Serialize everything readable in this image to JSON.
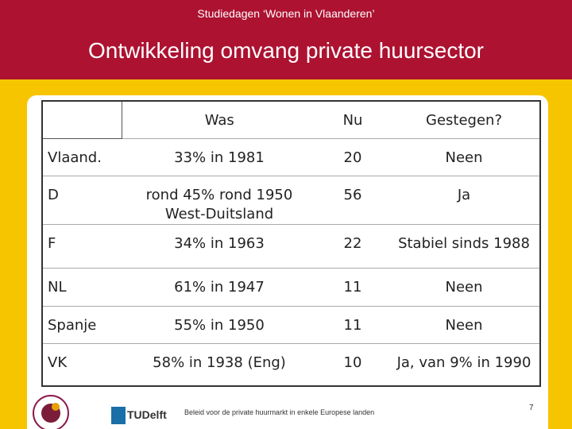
{
  "header": {
    "subtitle": "Studiedagen ‘Wonen in Vlaanderen’",
    "title": "Ontwikkeling omvang private huursector"
  },
  "table": {
    "columns": [
      "",
      "Was",
      "Nu",
      "Gestegen?"
    ],
    "rows": [
      [
        "Vlaand.",
        "33% in 1981",
        "20",
        "Neen"
      ],
      [
        "D",
        "rond 45% rond 1950 West-Duitsland",
        "56",
        "Ja"
      ],
      [
        "F",
        "34% in 1963",
        "22",
        "Stabiel sinds 1988"
      ],
      [
        "NL",
        "61%  in 1947",
        "11",
        "Neen"
      ],
      [
        "Spanje",
        "55% in 1950",
        "11",
        "Neen"
      ],
      [
        "VK",
        "58% in 1938 (Eng)",
        "10",
        "Ja, van 9% in 1990"
      ]
    ]
  },
  "footer": {
    "logo": "TUDelft",
    "text": "Beleid voor de private huurmarkt in enkele Europese landen",
    "page": "7"
  }
}
